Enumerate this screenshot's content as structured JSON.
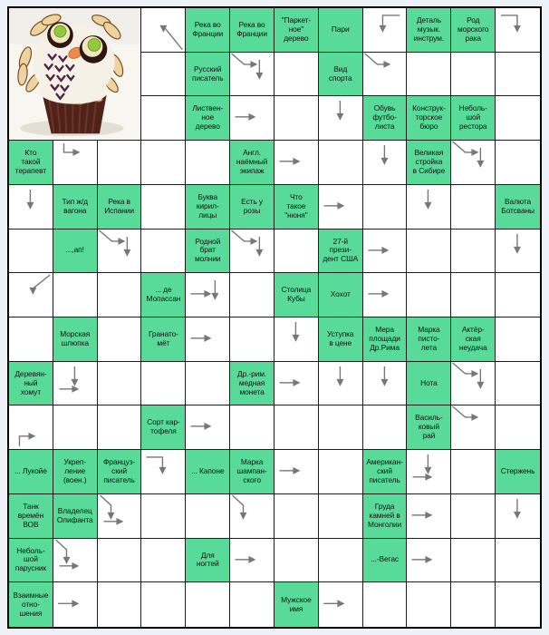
{
  "page": {
    "kind": "scanword-puzzle"
  },
  "colors": {
    "background": "#edf2f8",
    "clue_cell": "#58db99",
    "grid_line": "#1c1c1c",
    "outer_border": "#000000",
    "arrow": "#777777",
    "answer_cell": "#ffffff",
    "text": "#111111"
  },
  "grid": {
    "cols": 12,
    "rows": 14
  },
  "photo": {
    "row": 1,
    "col": 1,
    "rowspan": 3,
    "colspan": 3,
    "description": "Cupcake decorated as an owl: white frosting, almond-slice feathers, chocolate rings with green candy eyes, orange beak"
  },
  "clues": [
    {
      "r": 1,
      "c": 5,
      "t": "Река во\nФранции"
    },
    {
      "r": 1,
      "c": 6,
      "t": "Река во\nФранции"
    },
    {
      "r": 1,
      "c": 7,
      "t": "\"Паркет-\nное\"\nдерево"
    },
    {
      "r": 1,
      "c": 8,
      "t": "Пари"
    },
    {
      "r": 1,
      "c": 10,
      "t": "Деталь\nмузык.\nинструм."
    },
    {
      "r": 1,
      "c": 11,
      "t": "Род\nморского\nрака"
    },
    {
      "r": 2,
      "c": 5,
      "t": "Русский\nписатель"
    },
    {
      "r": 2,
      "c": 8,
      "t": "Вид\nспорта"
    },
    {
      "r": 3,
      "c": 5,
      "t": "Листвен-\nное\nдерево"
    },
    {
      "r": 3,
      "c": 9,
      "t": "Обувь\nфутбо-\nлиста"
    },
    {
      "r": 3,
      "c": 10,
      "t": "Конструк-\nторское\nбюро"
    },
    {
      "r": 3,
      "c": 11,
      "t": "Неболь-\nшой\nрестора"
    },
    {
      "r": 4,
      "c": 1,
      "t": "Кто\nтакой\nтерапевт"
    },
    {
      "r": 4,
      "c": 6,
      "t": "Англ.\nнаёмный\nэкипаж"
    },
    {
      "r": 4,
      "c": 10,
      "t": "Великая\nстройка\nв Сибире"
    },
    {
      "r": 5,
      "c": 2,
      "t": "Тип ж/д\nвагона"
    },
    {
      "r": 5,
      "c": 3,
      "t": "Река в\nИспании"
    },
    {
      "r": 5,
      "c": 5,
      "t": "Буква\nкирил-\nлицы"
    },
    {
      "r": 5,
      "c": 6,
      "t": "Есть у\nрозы"
    },
    {
      "r": 5,
      "c": 7,
      "t": "Что\nтакое\n\"нюня\""
    },
    {
      "r": 5,
      "c": 12,
      "t": "Валюта\nБотсваны"
    },
    {
      "r": 6,
      "c": 2,
      "t": "...,ап!"
    },
    {
      "r": 6,
      "c": 5,
      "t": "Родной\nбрат\nмолнии"
    },
    {
      "r": 6,
      "c": 8,
      "t": "27-й\nпрези-\nдент США"
    },
    {
      "r": 7,
      "c": 4,
      "t": "... де\nМопассан"
    },
    {
      "r": 7,
      "c": 7,
      "t": "Столица\nКубы"
    },
    {
      "r": 7,
      "c": 8,
      "t": "Хохот"
    },
    {
      "r": 8,
      "c": 2,
      "t": "Морская\nшлюпка"
    },
    {
      "r": 8,
      "c": 4,
      "t": "Гранато-\nмёт"
    },
    {
      "r": 8,
      "c": 8,
      "t": "Уступка\nв цене"
    },
    {
      "r": 8,
      "c": 9,
      "t": "Мера\nплощади\nДр.Рима"
    },
    {
      "r": 8,
      "c": 10,
      "t": "Марка\nписто-\nлета"
    },
    {
      "r": 8,
      "c": 11,
      "t": "Актёр-\nская\nнеудача"
    },
    {
      "r": 9,
      "c": 1,
      "t": "Деревян-\nный\nхомут"
    },
    {
      "r": 9,
      "c": 6,
      "t": "Др.-рим.\nмедная\nмонета"
    },
    {
      "r": 9,
      "c": 10,
      "t": "Нота"
    },
    {
      "r": 10,
      "c": 4,
      "t": "Сорт кар-\nтофеля"
    },
    {
      "r": 10,
      "c": 10,
      "t": "Василь-\nковый\nрай"
    },
    {
      "r": 11,
      "c": 1,
      "t": "... Лукойе"
    },
    {
      "r": 11,
      "c": 2,
      "t": "Укреп-\nление\n(воен.)"
    },
    {
      "r": 11,
      "c": 3,
      "t": "Француз-\nский\nписатель"
    },
    {
      "r": 11,
      "c": 5,
      "t": "... Капоне"
    },
    {
      "r": 11,
      "c": 6,
      "t": "Марка\nшампан-\nского"
    },
    {
      "r": 11,
      "c": 9,
      "t": "Американ-\nский\nписатель"
    },
    {
      "r": 11,
      "c": 12,
      "t": "Стержень"
    },
    {
      "r": 12,
      "c": 1,
      "t": "Танк\nвремён\nВОВ"
    },
    {
      "r": 12,
      "c": 2,
      "t": "Владелец\nОлифанта"
    },
    {
      "r": 12,
      "c": 9,
      "t": "Груда\nкамней в\nМонголии"
    },
    {
      "r": 13,
      "c": 1,
      "t": "Неболь-\nшой\nпарусник"
    },
    {
      "r": 13,
      "c": 5,
      "t": "Для\nногтей"
    },
    {
      "r": 13,
      "c": 9,
      "t": "...-Вегас"
    },
    {
      "r": 14,
      "c": 1,
      "t": "Взаимные\nотно-\nшения"
    },
    {
      "r": 14,
      "c": 7,
      "t": "Мужское\nимя"
    }
  ],
  "arrows": [
    {
      "r": 1,
      "c": 4,
      "types": [
        "dbrDown"
      ]
    },
    {
      "r": 1,
      "c": 9,
      "types": [
        "tailRightDown"
      ]
    },
    {
      "r": 1,
      "c": 12,
      "types": [
        "tailLeftDown"
      ]
    },
    {
      "r": 2,
      "c": 6,
      "types": [
        "dr",
        "downB"
      ]
    },
    {
      "r": 2,
      "c": 9,
      "types": [
        "dr"
      ]
    },
    {
      "r": 3,
      "c": 6,
      "types": [
        "right"
      ]
    },
    {
      "r": 3,
      "c": 8,
      "types": [
        "down"
      ]
    },
    {
      "r": 4,
      "c": 2,
      "types": [
        "cornerDR"
      ]
    },
    {
      "r": 4,
      "c": 7,
      "types": [
        "right"
      ]
    },
    {
      "r": 4,
      "c": 9,
      "types": [
        "down"
      ]
    },
    {
      "r": 4,
      "c": 11,
      "types": [
        "dr",
        "downB"
      ]
    },
    {
      "r": 5,
      "c": 1,
      "types": [
        "down"
      ]
    },
    {
      "r": 5,
      "c": 8,
      "types": [
        "right"
      ]
    },
    {
      "r": 5,
      "c": 10,
      "types": [
        "down"
      ]
    },
    {
      "r": 6,
      "c": 3,
      "types": [
        "dr",
        "downB"
      ]
    },
    {
      "r": 6,
      "c": 6,
      "types": [
        "dr",
        "downB"
      ]
    },
    {
      "r": 6,
      "c": 9,
      "types": [
        "right"
      ]
    },
    {
      "r": 6,
      "c": 12,
      "types": [
        "down"
      ]
    },
    {
      "r": 7,
      "c": 1,
      "types": [
        "trDown"
      ]
    },
    {
      "r": 7,
      "c": 5,
      "types": [
        "downB",
        "right"
      ]
    },
    {
      "r": 7,
      "c": 9,
      "types": [
        "right"
      ]
    },
    {
      "r": 8,
      "c": 5,
      "types": [
        "right"
      ]
    },
    {
      "r": 8,
      "c": 7,
      "types": [
        "down"
      ]
    },
    {
      "r": 9,
      "c": 2,
      "types": [
        "down",
        "rightB"
      ]
    },
    {
      "r": 9,
      "c": 7,
      "types": [
        "right"
      ]
    },
    {
      "r": 9,
      "c": 8,
      "types": [
        "down"
      ]
    },
    {
      "r": 9,
      "c": 9,
      "types": [
        "down"
      ]
    },
    {
      "r": 9,
      "c": 11,
      "types": [
        "dr",
        "downB"
      ]
    },
    {
      "r": 10,
      "c": 1,
      "types": [
        "cornerUR"
      ]
    },
    {
      "r": 10,
      "c": 5,
      "types": [
        "right"
      ]
    },
    {
      "r": 10,
      "c": 11,
      "types": [
        "dr"
      ]
    },
    {
      "r": 11,
      "c": 4,
      "types": [
        "tailLeftDown"
      ]
    },
    {
      "r": 11,
      "c": 7,
      "types": [
        "right"
      ]
    },
    {
      "r": 11,
      "c": 10,
      "types": [
        "down",
        "rightB"
      ]
    },
    {
      "r": 12,
      "c": 3,
      "types": [
        "dd",
        "rightB"
      ]
    },
    {
      "r": 12,
      "c": 6,
      "types": [
        "dd"
      ]
    },
    {
      "r": 12,
      "c": 10,
      "types": [
        "right"
      ]
    },
    {
      "r": 12,
      "c": 12,
      "types": [
        "down"
      ]
    },
    {
      "r": 13,
      "c": 2,
      "types": [
        "dd",
        "rightB"
      ]
    },
    {
      "r": 13,
      "c": 6,
      "types": [
        "right"
      ]
    },
    {
      "r": 13,
      "c": 10,
      "types": [
        "right"
      ]
    },
    {
      "r": 14,
      "c": 2,
      "types": [
        "right"
      ]
    },
    {
      "r": 14,
      "c": 8,
      "types": [
        "right"
      ]
    }
  ]
}
